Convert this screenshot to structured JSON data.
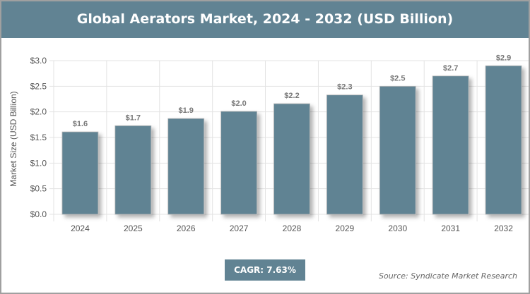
{
  "title": "Global Aerators Market, 2024 - 2032 (USD Billion)",
  "cagr": "CAGR: 7.63%",
  "source": "Source: Syndicate Market Research",
  "colors": {
    "bar": "#618393",
    "header": "#618393"
  },
  "chart_data": {
    "type": "bar",
    "title": "Global Aerators Market, 2024 - 2032 (USD Billion)",
    "xlabel": "",
    "ylabel": "Market Size (USD Billion)",
    "ylim": [
      0,
      3.0
    ],
    "yticks": [
      "$0.0",
      "$0.5",
      "$1.0",
      "$1.5",
      "$2.0",
      "$2.5",
      "$3.0"
    ],
    "categories": [
      "2024",
      "2025",
      "2026",
      "2027",
      "2028",
      "2029",
      "2030",
      "2031",
      "2032"
    ],
    "values": [
      1.61,
      1.73,
      1.87,
      2.01,
      2.16,
      2.33,
      2.5,
      2.7,
      2.9
    ],
    "data_labels": [
      "$1.6",
      "$1.7",
      "$1.9",
      "$2.0",
      "$2.2",
      "$2.3",
      "$2.5",
      "$2.7",
      "$2.9"
    ],
    "grid": true,
    "legend": "none"
  }
}
